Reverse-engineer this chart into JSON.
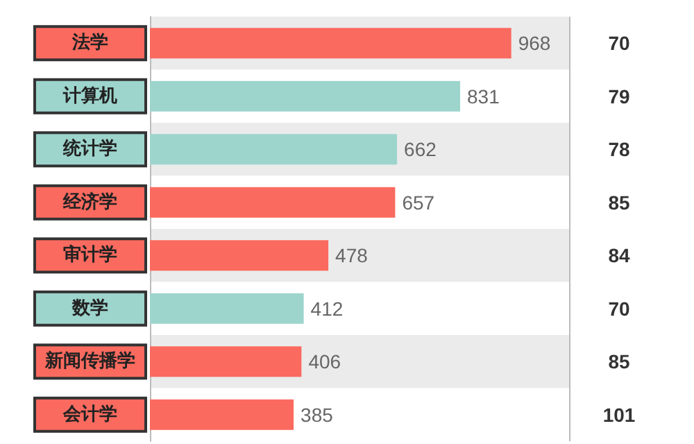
{
  "chart_data": {
    "type": "bar",
    "orientation": "horizontal",
    "categories": [
      "法学",
      "计算机",
      "统计学",
      "经济学",
      "审计学",
      "数学",
      "新闻传播学",
      "会计学"
    ],
    "values": [
      968,
      831,
      662,
      657,
      478,
      412,
      406,
      385
    ],
    "colors": [
      "#fa6a5f",
      "#9dd5cd",
      "#9dd5cd",
      "#fa6a5f",
      "#fa6a5f",
      "#9dd5cd",
      "#fa6a5f",
      "#fa6a5f"
    ],
    "data_labels": true,
    "annotations": [
      "70",
      "79",
      "78",
      "85",
      "84",
      "70",
      "85",
      "101"
    ]
  }
}
